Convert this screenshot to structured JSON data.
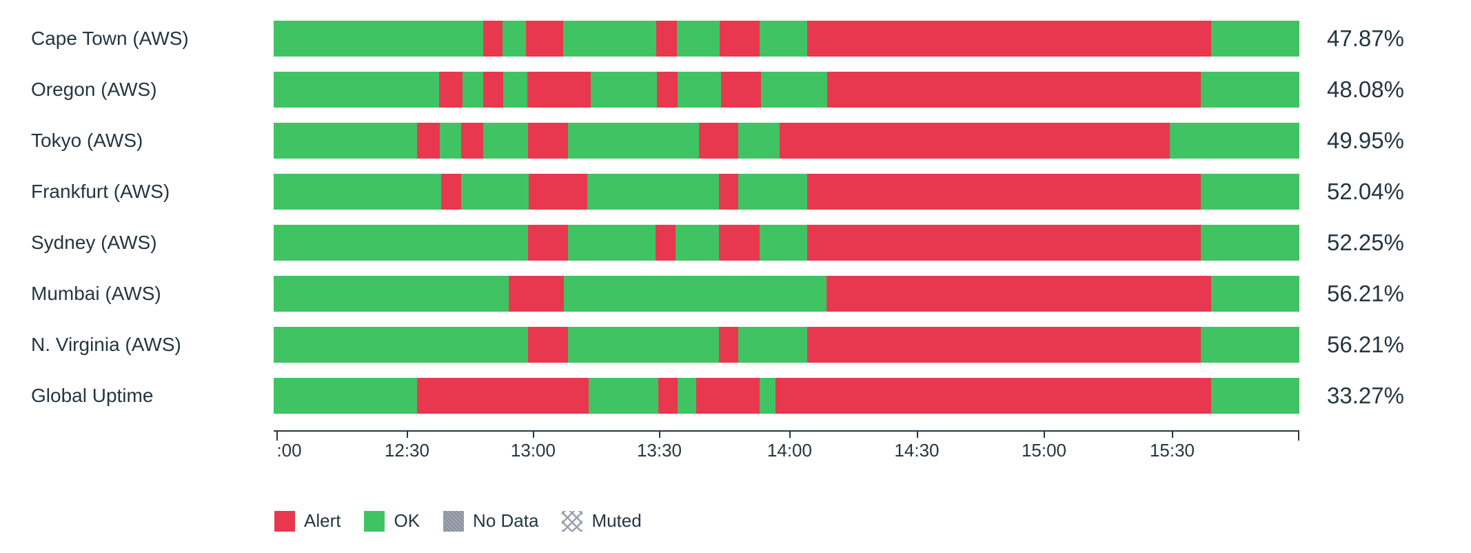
{
  "colors": {
    "alert": "#e8384f",
    "ok": "#40c463",
    "no_data": "#8b939e",
    "muted_pattern_line": "#98a0aa",
    "text": "#243640",
    "axis": "#243640",
    "background": "#ffffff"
  },
  "chart_data": {
    "type": "bar",
    "subtype": "horizontal-stacked-status-timeline",
    "orientation": "horizontal",
    "grid": false,
    "legend_position": "bottom-left",
    "x_axis": {
      "tick_labels": [
        ":00",
        "12:30",
        "13:00",
        "13:30",
        "14:00",
        "14:30",
        "15:00",
        "15:30"
      ],
      "tick_positions_pct": [
        0.3,
        13.0,
        25.3,
        37.6,
        50.3,
        62.7,
        75.1,
        87.6
      ],
      "end_tick_pct": 100,
      "note_visible_range": "left label clipped to :00; axis spans ~12:00 to ~16:00"
    },
    "legend": [
      {
        "label": "Alert",
        "status": "alert"
      },
      {
        "label": "OK",
        "status": "ok"
      },
      {
        "label": "No Data",
        "status": "no_data"
      },
      {
        "label": "Muted",
        "status": "muted"
      }
    ],
    "rows": [
      {
        "label": "Cape Town (AWS)",
        "uptime": "47.87%",
        "segments": [
          {
            "status": "ok",
            "width_pct": 20.4
          },
          {
            "status": "alert",
            "width_pct": 1.9
          },
          {
            "status": "ok",
            "width_pct": 2.3
          },
          {
            "status": "alert",
            "width_pct": 3.6
          },
          {
            "status": "ok",
            "width_pct": 9.1
          },
          {
            "status": "alert",
            "width_pct": 2.0
          },
          {
            "status": "ok",
            "width_pct": 4.2
          },
          {
            "status": "alert",
            "width_pct": 3.9
          },
          {
            "status": "ok",
            "width_pct": 4.6
          },
          {
            "status": "alert",
            "width_pct": 39.4
          },
          {
            "status": "ok",
            "width_pct": 8.6
          }
        ]
      },
      {
        "label": "Oregon (AWS)",
        "uptime": "48.08%",
        "segments": [
          {
            "status": "ok",
            "width_pct": 16.1
          },
          {
            "status": "alert",
            "width_pct": 2.3
          },
          {
            "status": "ok",
            "width_pct": 2.0
          },
          {
            "status": "alert",
            "width_pct": 2.0
          },
          {
            "status": "ok",
            "width_pct": 2.3
          },
          {
            "status": "alert",
            "width_pct": 6.2
          },
          {
            "status": "ok",
            "width_pct": 6.5
          },
          {
            "status": "alert",
            "width_pct": 2.0
          },
          {
            "status": "ok",
            "width_pct": 4.2
          },
          {
            "status": "alert",
            "width_pct": 3.9
          },
          {
            "status": "ok",
            "width_pct": 6.5
          },
          {
            "status": "alert",
            "width_pct": 36.4
          },
          {
            "status": "ok",
            "width_pct": 9.6
          }
        ]
      },
      {
        "label": "Tokyo (AWS)",
        "uptime": "49.95%",
        "segments": [
          {
            "status": "ok",
            "width_pct": 14.0
          },
          {
            "status": "alert",
            "width_pct": 2.2
          },
          {
            "status": "ok",
            "width_pct": 2.1
          },
          {
            "status": "alert",
            "width_pct": 2.1
          },
          {
            "status": "ok",
            "width_pct": 4.4
          },
          {
            "status": "alert",
            "width_pct": 3.9
          },
          {
            "status": "ok",
            "width_pct": 12.8
          },
          {
            "status": "alert",
            "width_pct": 3.8
          },
          {
            "status": "ok",
            "width_pct": 4.0
          },
          {
            "status": "alert",
            "width_pct": 38.1
          },
          {
            "status": "ok",
            "width_pct": 12.6
          }
        ]
      },
      {
        "label": "Frankfurt (AWS)",
        "uptime": "52.04%",
        "segments": [
          {
            "status": "ok",
            "width_pct": 16.3
          },
          {
            "status": "alert",
            "width_pct": 2.0
          },
          {
            "status": "ok",
            "width_pct": 6.6
          },
          {
            "status": "alert",
            "width_pct": 5.7
          },
          {
            "status": "ok",
            "width_pct": 12.8
          },
          {
            "status": "alert",
            "width_pct": 1.9
          },
          {
            "status": "ok",
            "width_pct": 6.7
          },
          {
            "status": "alert",
            "width_pct": 38.4
          },
          {
            "status": "ok",
            "width_pct": 9.6
          }
        ]
      },
      {
        "label": "Sydney (AWS)",
        "uptime": "52.25%",
        "segments": [
          {
            "status": "ok",
            "width_pct": 24.8
          },
          {
            "status": "alert",
            "width_pct": 3.9
          },
          {
            "status": "ok",
            "width_pct": 8.5
          },
          {
            "status": "alert",
            "width_pct": 2.0
          },
          {
            "status": "ok",
            "width_pct": 4.2
          },
          {
            "status": "alert",
            "width_pct": 4.0
          },
          {
            "status": "ok",
            "width_pct": 4.6
          },
          {
            "status": "alert",
            "width_pct": 38.4
          },
          {
            "status": "ok",
            "width_pct": 9.6
          }
        ]
      },
      {
        "label": "Mumbai (AWS)",
        "uptime": "56.21%",
        "segments": [
          {
            "status": "ok",
            "width_pct": 22.9
          },
          {
            "status": "alert",
            "width_pct": 5.4
          },
          {
            "status": "ok",
            "width_pct": 25.6
          },
          {
            "status": "alert",
            "width_pct": 37.5
          },
          {
            "status": "ok",
            "width_pct": 8.6
          }
        ]
      },
      {
        "label": "N. Virginia (AWS)",
        "uptime": "56.21%",
        "segments": [
          {
            "status": "ok",
            "width_pct": 24.8
          },
          {
            "status": "alert",
            "width_pct": 3.9
          },
          {
            "status": "ok",
            "width_pct": 14.7
          },
          {
            "status": "alert",
            "width_pct": 1.9
          },
          {
            "status": "ok",
            "width_pct": 6.7
          },
          {
            "status": "alert",
            "width_pct": 38.4
          },
          {
            "status": "ok",
            "width_pct": 9.6
          }
        ]
      },
      {
        "label": "Global Uptime",
        "uptime": "33.27%",
        "segments": [
          {
            "status": "ok",
            "width_pct": 14.0
          },
          {
            "status": "alert",
            "width_pct": 16.7
          },
          {
            "status": "ok",
            "width_pct": 6.8
          },
          {
            "status": "alert",
            "width_pct": 1.9
          },
          {
            "status": "ok",
            "width_pct": 1.8
          },
          {
            "status": "alert",
            "width_pct": 6.2
          },
          {
            "status": "ok",
            "width_pct": 1.5
          },
          {
            "status": "alert",
            "width_pct": 42.5
          },
          {
            "status": "ok",
            "width_pct": 8.6
          }
        ]
      }
    ]
  }
}
